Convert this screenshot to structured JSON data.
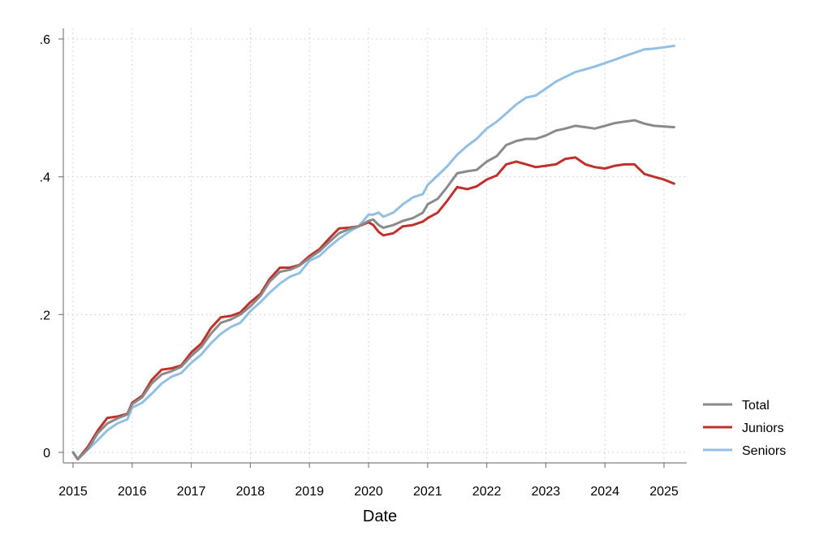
{
  "chart_data": {
    "type": "line",
    "title": "",
    "xlabel": "Date",
    "ylabel": "",
    "xlim": [
      2015.0,
      2025.3
    ],
    "ylim": [
      -0.02,
      0.62
    ],
    "x_ticks": [
      {
        "value": 2015,
        "label": "2015"
      },
      {
        "value": 2016,
        "label": "2016"
      },
      {
        "value": 2017,
        "label": "2017"
      },
      {
        "value": 2018,
        "label": "2018"
      },
      {
        "value": 2019,
        "label": "2019"
      },
      {
        "value": 2020,
        "label": "2020"
      },
      {
        "value": 2021,
        "label": "2021"
      },
      {
        "value": 2022,
        "label": "2022"
      },
      {
        "value": 2023,
        "label": "2023"
      },
      {
        "value": 2024,
        "label": "2024"
      },
      {
        "value": 2025,
        "label": "2025"
      }
    ],
    "y_ticks": [
      {
        "value": 0,
        "label": "0"
      },
      {
        "value": 0.2,
        "label": ".2"
      },
      {
        "value": 0.4,
        "label": ".4"
      },
      {
        "value": 0.6,
        "label": ".6"
      }
    ],
    "grid": true,
    "legend_position": "bottom-right",
    "series": [
      {
        "name": "Total",
        "color": "#8a8a8a",
        "x": [
          2015.0,
          2015.08,
          2015.25,
          2015.42,
          2015.58,
          2015.75,
          2015.92,
          2016.0,
          2016.17,
          2016.33,
          2016.5,
          2016.67,
          2016.83,
          2017.0,
          2017.17,
          2017.33,
          2017.5,
          2017.67,
          2017.83,
          2018.0,
          2018.17,
          2018.33,
          2018.5,
          2018.67,
          2018.83,
          2019.0,
          2019.17,
          2019.33,
          2019.5,
          2019.67,
          2019.83,
          2020.0,
          2020.08,
          2020.17,
          2020.25,
          2020.42,
          2020.58,
          2020.75,
          2020.92,
          2021.0,
          2021.17,
          2021.33,
          2021.5,
          2021.67,
          2021.83,
          2022.0,
          2022.17,
          2022.33,
          2022.5,
          2022.67,
          2022.83,
          2023.0,
          2023.17,
          2023.33,
          2023.5,
          2023.67,
          2023.83,
          2024.0,
          2024.17,
          2024.33,
          2024.5,
          2024.67,
          2024.83,
          2025.0,
          2025.17
        ],
        "y": [
          0.0,
          -0.01,
          0.005,
          0.028,
          0.042,
          0.049,
          0.055,
          0.07,
          0.08,
          0.1,
          0.113,
          0.118,
          0.124,
          0.14,
          0.153,
          0.172,
          0.188,
          0.193,
          0.2,
          0.212,
          0.227,
          0.248,
          0.262,
          0.265,
          0.271,
          0.282,
          0.292,
          0.305,
          0.318,
          0.324,
          0.328,
          0.336,
          0.338,
          0.33,
          0.326,
          0.33,
          0.336,
          0.34,
          0.348,
          0.36,
          0.368,
          0.385,
          0.405,
          0.408,
          0.41,
          0.422,
          0.43,
          0.446,
          0.452,
          0.455,
          0.455,
          0.46,
          0.467,
          0.47,
          0.474,
          0.472,
          0.47,
          0.474,
          0.478,
          0.48,
          0.482,
          0.477,
          0.474,
          0.473,
          0.472
        ]
      },
      {
        "name": "Juniors",
        "color": "#c0312b",
        "x": [
          2015.0,
          2015.08,
          2015.25,
          2015.42,
          2015.58,
          2015.75,
          2015.92,
          2016.0,
          2016.17,
          2016.33,
          2016.5,
          2016.67,
          2016.83,
          2017.0,
          2017.17,
          2017.33,
          2017.5,
          2017.67,
          2017.83,
          2018.0,
          2018.17,
          2018.33,
          2018.5,
          2018.67,
          2018.83,
          2019.0,
          2019.17,
          2019.33,
          2019.5,
          2019.67,
          2019.83,
          2020.0,
          2020.08,
          2020.17,
          2020.25,
          2020.42,
          2020.58,
          2020.75,
          2020.92,
          2021.0,
          2021.17,
          2021.33,
          2021.5,
          2021.67,
          2021.83,
          2022.0,
          2022.17,
          2022.33,
          2022.5,
          2022.67,
          2022.83,
          2023.0,
          2023.17,
          2023.33,
          2023.5,
          2023.67,
          2023.83,
          2024.0,
          2024.17,
          2024.33,
          2024.5,
          2024.67,
          2024.83,
          2025.0,
          2025.17
        ],
        "y": [
          0.0,
          -0.01,
          0.008,
          0.032,
          0.05,
          0.052,
          0.056,
          0.072,
          0.082,
          0.105,
          0.12,
          0.122,
          0.126,
          0.145,
          0.158,
          0.18,
          0.196,
          0.198,
          0.203,
          0.218,
          0.23,
          0.252,
          0.268,
          0.268,
          0.272,
          0.285,
          0.295,
          0.31,
          0.325,
          0.326,
          0.328,
          0.334,
          0.33,
          0.32,
          0.315,
          0.318,
          0.328,
          0.33,
          0.335,
          0.34,
          0.348,
          0.365,
          0.385,
          0.382,
          0.386,
          0.396,
          0.402,
          0.418,
          0.422,
          0.418,
          0.414,
          0.416,
          0.418,
          0.426,
          0.428,
          0.418,
          0.414,
          0.412,
          0.416,
          0.418,
          0.418,
          0.404,
          0.4,
          0.396,
          0.39
        ]
      },
      {
        "name": "Seniors",
        "color": "#92c0e4",
        "x": [
          2015.0,
          2015.08,
          2015.25,
          2015.42,
          2015.58,
          2015.75,
          2015.92,
          2016.0,
          2016.17,
          2016.33,
          2016.5,
          2016.67,
          2016.83,
          2017.0,
          2017.17,
          2017.33,
          2017.5,
          2017.67,
          2017.83,
          2018.0,
          2018.17,
          2018.33,
          2018.5,
          2018.67,
          2018.83,
          2019.0,
          2019.17,
          2019.33,
          2019.5,
          2019.67,
          2019.83,
          2020.0,
          2020.08,
          2020.17,
          2020.25,
          2020.42,
          2020.58,
          2020.75,
          2020.92,
          2021.0,
          2021.17,
          2021.33,
          2021.5,
          2021.67,
          2021.83,
          2022.0,
          2022.17,
          2022.33,
          2022.5,
          2022.67,
          2022.83,
          2023.0,
          2023.17,
          2023.33,
          2023.5,
          2023.67,
          2023.83,
          2024.0,
          2024.17,
          2024.33,
          2024.5,
          2024.67,
          2024.83,
          2025.0,
          2025.17
        ],
        "y": [
          0.0,
          -0.01,
          0.004,
          0.018,
          0.032,
          0.042,
          0.048,
          0.065,
          0.072,
          0.085,
          0.1,
          0.11,
          0.115,
          0.13,
          0.142,
          0.158,
          0.172,
          0.182,
          0.188,
          0.205,
          0.218,
          0.232,
          0.245,
          0.255,
          0.26,
          0.278,
          0.285,
          0.298,
          0.31,
          0.32,
          0.328,
          0.345,
          0.345,
          0.348,
          0.342,
          0.348,
          0.36,
          0.37,
          0.375,
          0.388,
          0.402,
          0.415,
          0.432,
          0.445,
          0.455,
          0.47,
          0.48,
          0.492,
          0.505,
          0.515,
          0.518,
          0.528,
          0.538,
          0.545,
          0.552,
          0.556,
          0.56,
          0.565,
          0.57,
          0.575,
          0.58,
          0.585,
          0.586,
          0.588,
          0.59
        ]
      }
    ]
  }
}
